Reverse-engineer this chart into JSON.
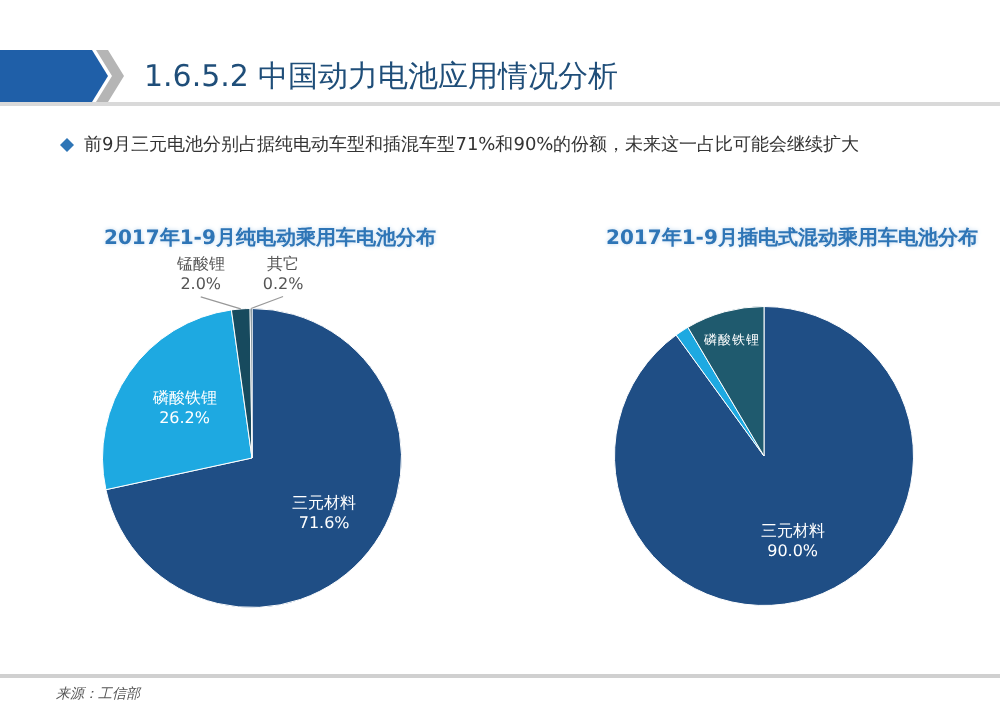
{
  "chart_data": [
    {
      "type": "other",
      "title": "1.6.5.2 中国动力电池应用情况分析",
      "annotations": [
        "前9月三元电池分别占据纯电动车型和插混车型71%和90%的份额，未来这一占比可能会继续扩大"
      ]
    },
    {
      "type": "pie",
      "title": "2017年1-9月纯电动乘用车电池分布",
      "categories": [
        "三元材料",
        "磷酸铁锂",
        "锰酸锂",
        "其它"
      ],
      "values": [
        71.6,
        26.2,
        2.0,
        0.2
      ],
      "value_labels": [
        "71.6%",
        "26.2%",
        "2.0%",
        "0.2%"
      ],
      "colors": [
        "#1f4e85",
        "#1ea9e1",
        "#174a5e",
        "#1d3a4a"
      ],
      "annotations": [
        "来源：工信部"
      ]
    },
    {
      "type": "pie",
      "title": "2017年1-9月插电式混动乘用车电池分布",
      "categories": [
        "三元材料",
        null,
        "磷酸铁锂"
      ],
      "values": [
        90.0,
        1.5,
        8.5
      ],
      "value_labels": [
        "90.0%",
        null,
        null
      ],
      "colors": [
        "#1f4e85",
        "#1ea9e1",
        "#1f5a6e"
      ]
    }
  ]
}
